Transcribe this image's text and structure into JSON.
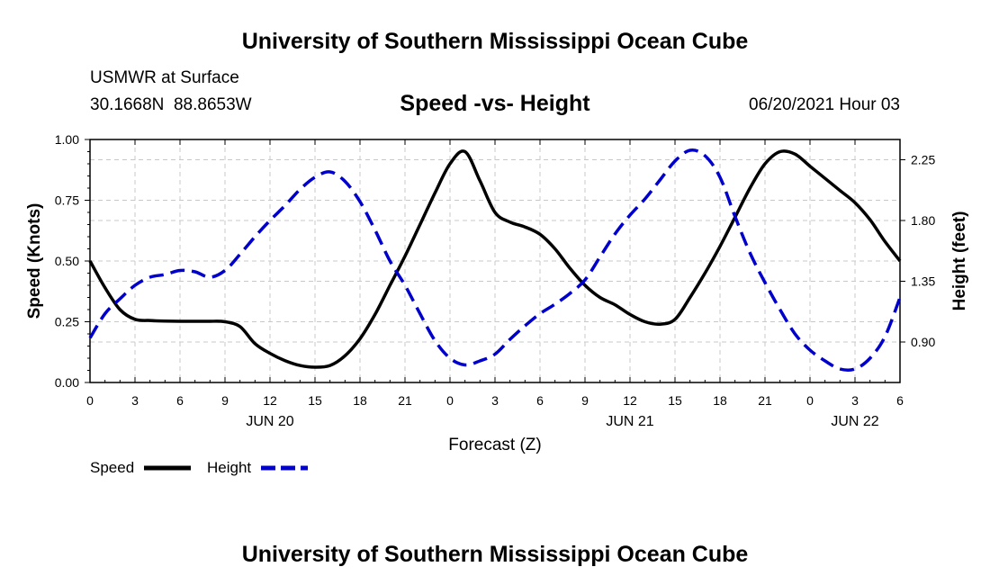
{
  "page": {
    "top_title": "University of Southern Mississippi Ocean Cube",
    "bottom_title": "University of Southern Mississippi Ocean Cube",
    "station_name": "USMWR at Surface",
    "station_coords": "30.1668N  88.8653W",
    "chart_heading": "Speed -vs- Height",
    "timestamp": "06/20/2021 Hour 03"
  },
  "legend": {
    "speed_label": "Speed",
    "height_label": "Height"
  },
  "colors": {
    "speed": "#000000",
    "height": "#0000cc",
    "grid": "#c8c8c8"
  },
  "chart_data": {
    "type": "line",
    "title": "Speed -vs- Height",
    "xlabel": "Forecast (Z)",
    "ylabel_left": "Speed (Knots)",
    "ylabel_right": "Height (feet)",
    "x_unit": "hours since 06/20/2021 00Z",
    "xlim": [
      0,
      54
    ],
    "ylim_left": [
      0,
      1.0
    ],
    "ylim_right": [
      0.6,
      2.4
    ],
    "x_ticks": [
      0,
      3,
      6,
      9,
      12,
      15,
      18,
      21,
      24,
      27,
      30,
      33,
      36,
      39,
      42,
      45,
      48,
      51,
      54
    ],
    "x_tick_labels": [
      "0",
      "3",
      "6",
      "9",
      "12",
      "15",
      "18",
      "21",
      "0",
      "3",
      "6",
      "9",
      "12",
      "15",
      "18",
      "21",
      "0",
      "3",
      "6"
    ],
    "y_left_ticks": [
      0,
      0.25,
      0.5,
      0.75,
      1.0
    ],
    "y_left_tick_labels": [
      "0.00",
      "0.25",
      "0.50",
      "0.75",
      "1.00"
    ],
    "y_right_ticks": [
      0.9,
      1.35,
      1.8,
      2.25
    ],
    "y_right_tick_labels": [
      "0.90",
      "1.35",
      "1.80",
      "2.25"
    ],
    "date_labels": [
      {
        "x": 12,
        "label": "JUN 20"
      },
      {
        "x": 36,
        "label": "JUN 21"
      },
      {
        "x": 51,
        "label": "JUN 22"
      }
    ],
    "grid": true,
    "series": [
      {
        "name": "Speed",
        "axis": "left",
        "style": "solid",
        "x": [
          0,
          1,
          2,
          3,
          4,
          5,
          6,
          7,
          8,
          9,
          10,
          11,
          12,
          13,
          14,
          15,
          16,
          17,
          18,
          19,
          20,
          21,
          22,
          23,
          24,
          25,
          26,
          27,
          28,
          29,
          30,
          31,
          32,
          33,
          34,
          35,
          36,
          37,
          38,
          39,
          40,
          41,
          42,
          43,
          44,
          45,
          46,
          47,
          48,
          49,
          50,
          51,
          52,
          53,
          54
        ],
        "values": [
          0.5,
          0.39,
          0.3,
          0.26,
          0.255,
          0.253,
          0.252,
          0.252,
          0.252,
          0.25,
          0.23,
          0.16,
          0.12,
          0.09,
          0.07,
          0.063,
          0.07,
          0.11,
          0.18,
          0.28,
          0.4,
          0.52,
          0.65,
          0.78,
          0.9,
          0.95,
          0.83,
          0.7,
          0.66,
          0.64,
          0.61,
          0.55,
          0.47,
          0.4,
          0.35,
          0.32,
          0.28,
          0.25,
          0.24,
          0.26,
          0.35,
          0.45,
          0.56,
          0.68,
          0.8,
          0.9,
          0.95,
          0.94,
          0.89,
          0.84,
          0.79,
          0.74,
          0.67,
          0.58,
          0.5
        ]
      },
      {
        "name": "Height",
        "axis": "right",
        "style": "dashed",
        "x": [
          0,
          1,
          2,
          3,
          4,
          5,
          6,
          7,
          8,
          9,
          10,
          11,
          12,
          13,
          14,
          15,
          16,
          17,
          18,
          19,
          20,
          21,
          22,
          23,
          24,
          25,
          26,
          27,
          28,
          29,
          30,
          31,
          32,
          33,
          34,
          35,
          36,
          37,
          38,
          39,
          40,
          41,
          42,
          43,
          44,
          45,
          46,
          47,
          48,
          49,
          50,
          51,
          52,
          53,
          54
        ],
        "values": [
          0.93,
          1.11,
          1.22,
          1.32,
          1.38,
          1.4,
          1.43,
          1.42,
          1.38,
          1.43,
          1.55,
          1.68,
          1.8,
          1.91,
          2.03,
          2.12,
          2.16,
          2.09,
          1.94,
          1.73,
          1.5,
          1.32,
          1.11,
          0.91,
          0.78,
          0.73,
          0.76,
          0.81,
          0.92,
          1.02,
          1.11,
          1.18,
          1.26,
          1.36,
          1.53,
          1.7,
          1.84,
          1.96,
          2.1,
          2.24,
          2.32,
          2.28,
          2.12,
          1.83,
          1.56,
          1.34,
          1.14,
          0.96,
          0.84,
          0.76,
          0.7,
          0.7,
          0.78,
          0.94,
          1.23
        ]
      }
    ]
  }
}
